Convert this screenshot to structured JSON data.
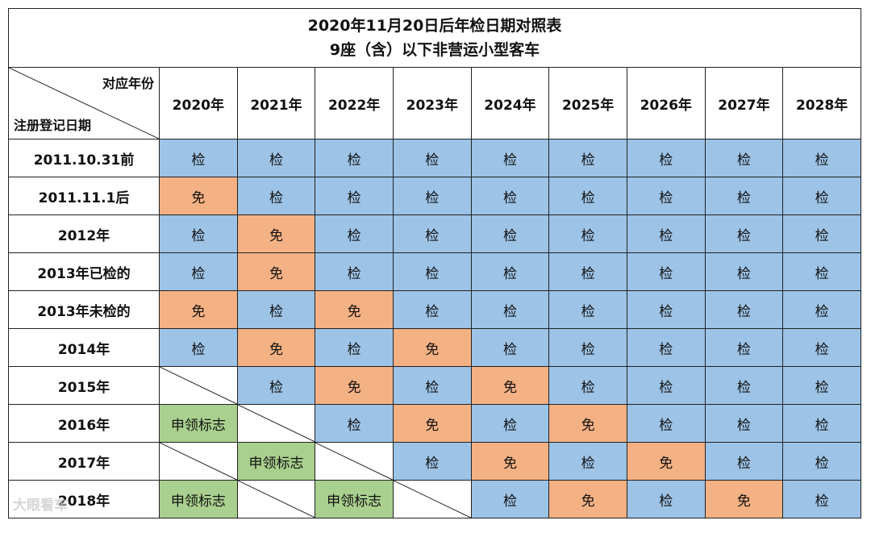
{
  "title_line1": "2020年11月20日后年检日期对照表",
  "title_line2": "9座（含）以下非营运小型客车",
  "corner_top": "对应年份",
  "corner_bottom": "注册登记日期",
  "years": [
    "2020年",
    "2021年",
    "2022年",
    "2023年",
    "2024年",
    "2025年",
    "2026年",
    "2027年",
    "2028年"
  ],
  "labels": {
    "check": "检",
    "exempt": "免",
    "apply": "申领标志"
  },
  "rows": [
    {
      "label": "2011.10.31前",
      "cells": [
        "check",
        "check",
        "check",
        "check",
        "check",
        "check",
        "check",
        "check",
        "check"
      ]
    },
    {
      "label": "2011.11.1后",
      "cells": [
        "exempt",
        "check",
        "check",
        "check",
        "check",
        "check",
        "check",
        "check",
        "check"
      ]
    },
    {
      "label": "2012年",
      "cells": [
        "check",
        "exempt",
        "check",
        "check",
        "check",
        "check",
        "check",
        "check",
        "check"
      ]
    },
    {
      "label": "2013年已检的",
      "cells": [
        "check",
        "exempt",
        "check",
        "check",
        "check",
        "check",
        "check",
        "check",
        "check"
      ]
    },
    {
      "label": "2013年未检的",
      "cells": [
        "exempt",
        "check",
        "exempt",
        "check",
        "check",
        "check",
        "check",
        "check",
        "check"
      ]
    },
    {
      "label": "2014年",
      "cells": [
        "check",
        "exempt",
        "check",
        "exempt",
        "check",
        "check",
        "check",
        "check",
        "check"
      ]
    },
    {
      "label": "2015年",
      "cells": [
        "blank",
        "check",
        "exempt",
        "check",
        "exempt",
        "check",
        "check",
        "check",
        "check"
      ]
    },
    {
      "label": "2016年",
      "cells": [
        "apply",
        "blank",
        "check",
        "exempt",
        "check",
        "exempt",
        "check",
        "check",
        "check"
      ]
    },
    {
      "label": "2017年",
      "cells": [
        "blank",
        "apply",
        "blank",
        "check",
        "exempt",
        "check",
        "exempt",
        "check",
        "check"
      ]
    },
    {
      "label": "2018年",
      "cells": [
        "apply",
        "blank",
        "apply",
        "blank",
        "check",
        "exempt",
        "check",
        "exempt",
        "check"
      ]
    }
  ],
  "watermark": "大眼看车",
  "colors": {
    "check": "#9dc3e6",
    "exempt": "#f4b183",
    "apply": "#a9d08e"
  }
}
